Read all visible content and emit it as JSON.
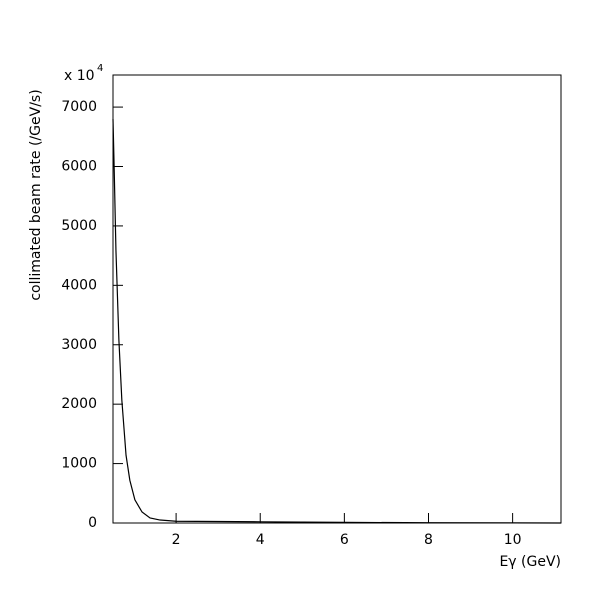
{
  "chart_data": {
    "type": "line",
    "x_label": "Eγ (GeV)",
    "y_label": "collimated beam rate (/GeV/s)",
    "y_multiplier": {
      "base": "x 10",
      "exponent": "4"
    },
    "x": [
      0.5,
      0.53,
      0.57,
      0.64,
      0.71,
      0.81,
      0.9,
      1.02,
      1.19,
      1.38,
      1.62,
      2,
      3,
      4,
      6,
      8,
      10,
      11.15
    ],
    "series": [
      {
        "color": "#000000",
        "values": [
          6800,
          5900,
          4590,
          3080,
          2070,
          1140,
          720,
          390,
          185,
          85,
          50,
          30,
          25,
          20,
          10,
          5,
          2,
          0
        ]
      }
    ],
    "xlim": [
      0.5,
      11.15
    ],
    "ylim": [
      0,
      7540
    ],
    "xticks": [
      2,
      4,
      6,
      8,
      10
    ],
    "yticks": [
      0,
      1000,
      2000,
      3000,
      4000,
      5000,
      6000,
      7000
    ],
    "grid": false
  }
}
